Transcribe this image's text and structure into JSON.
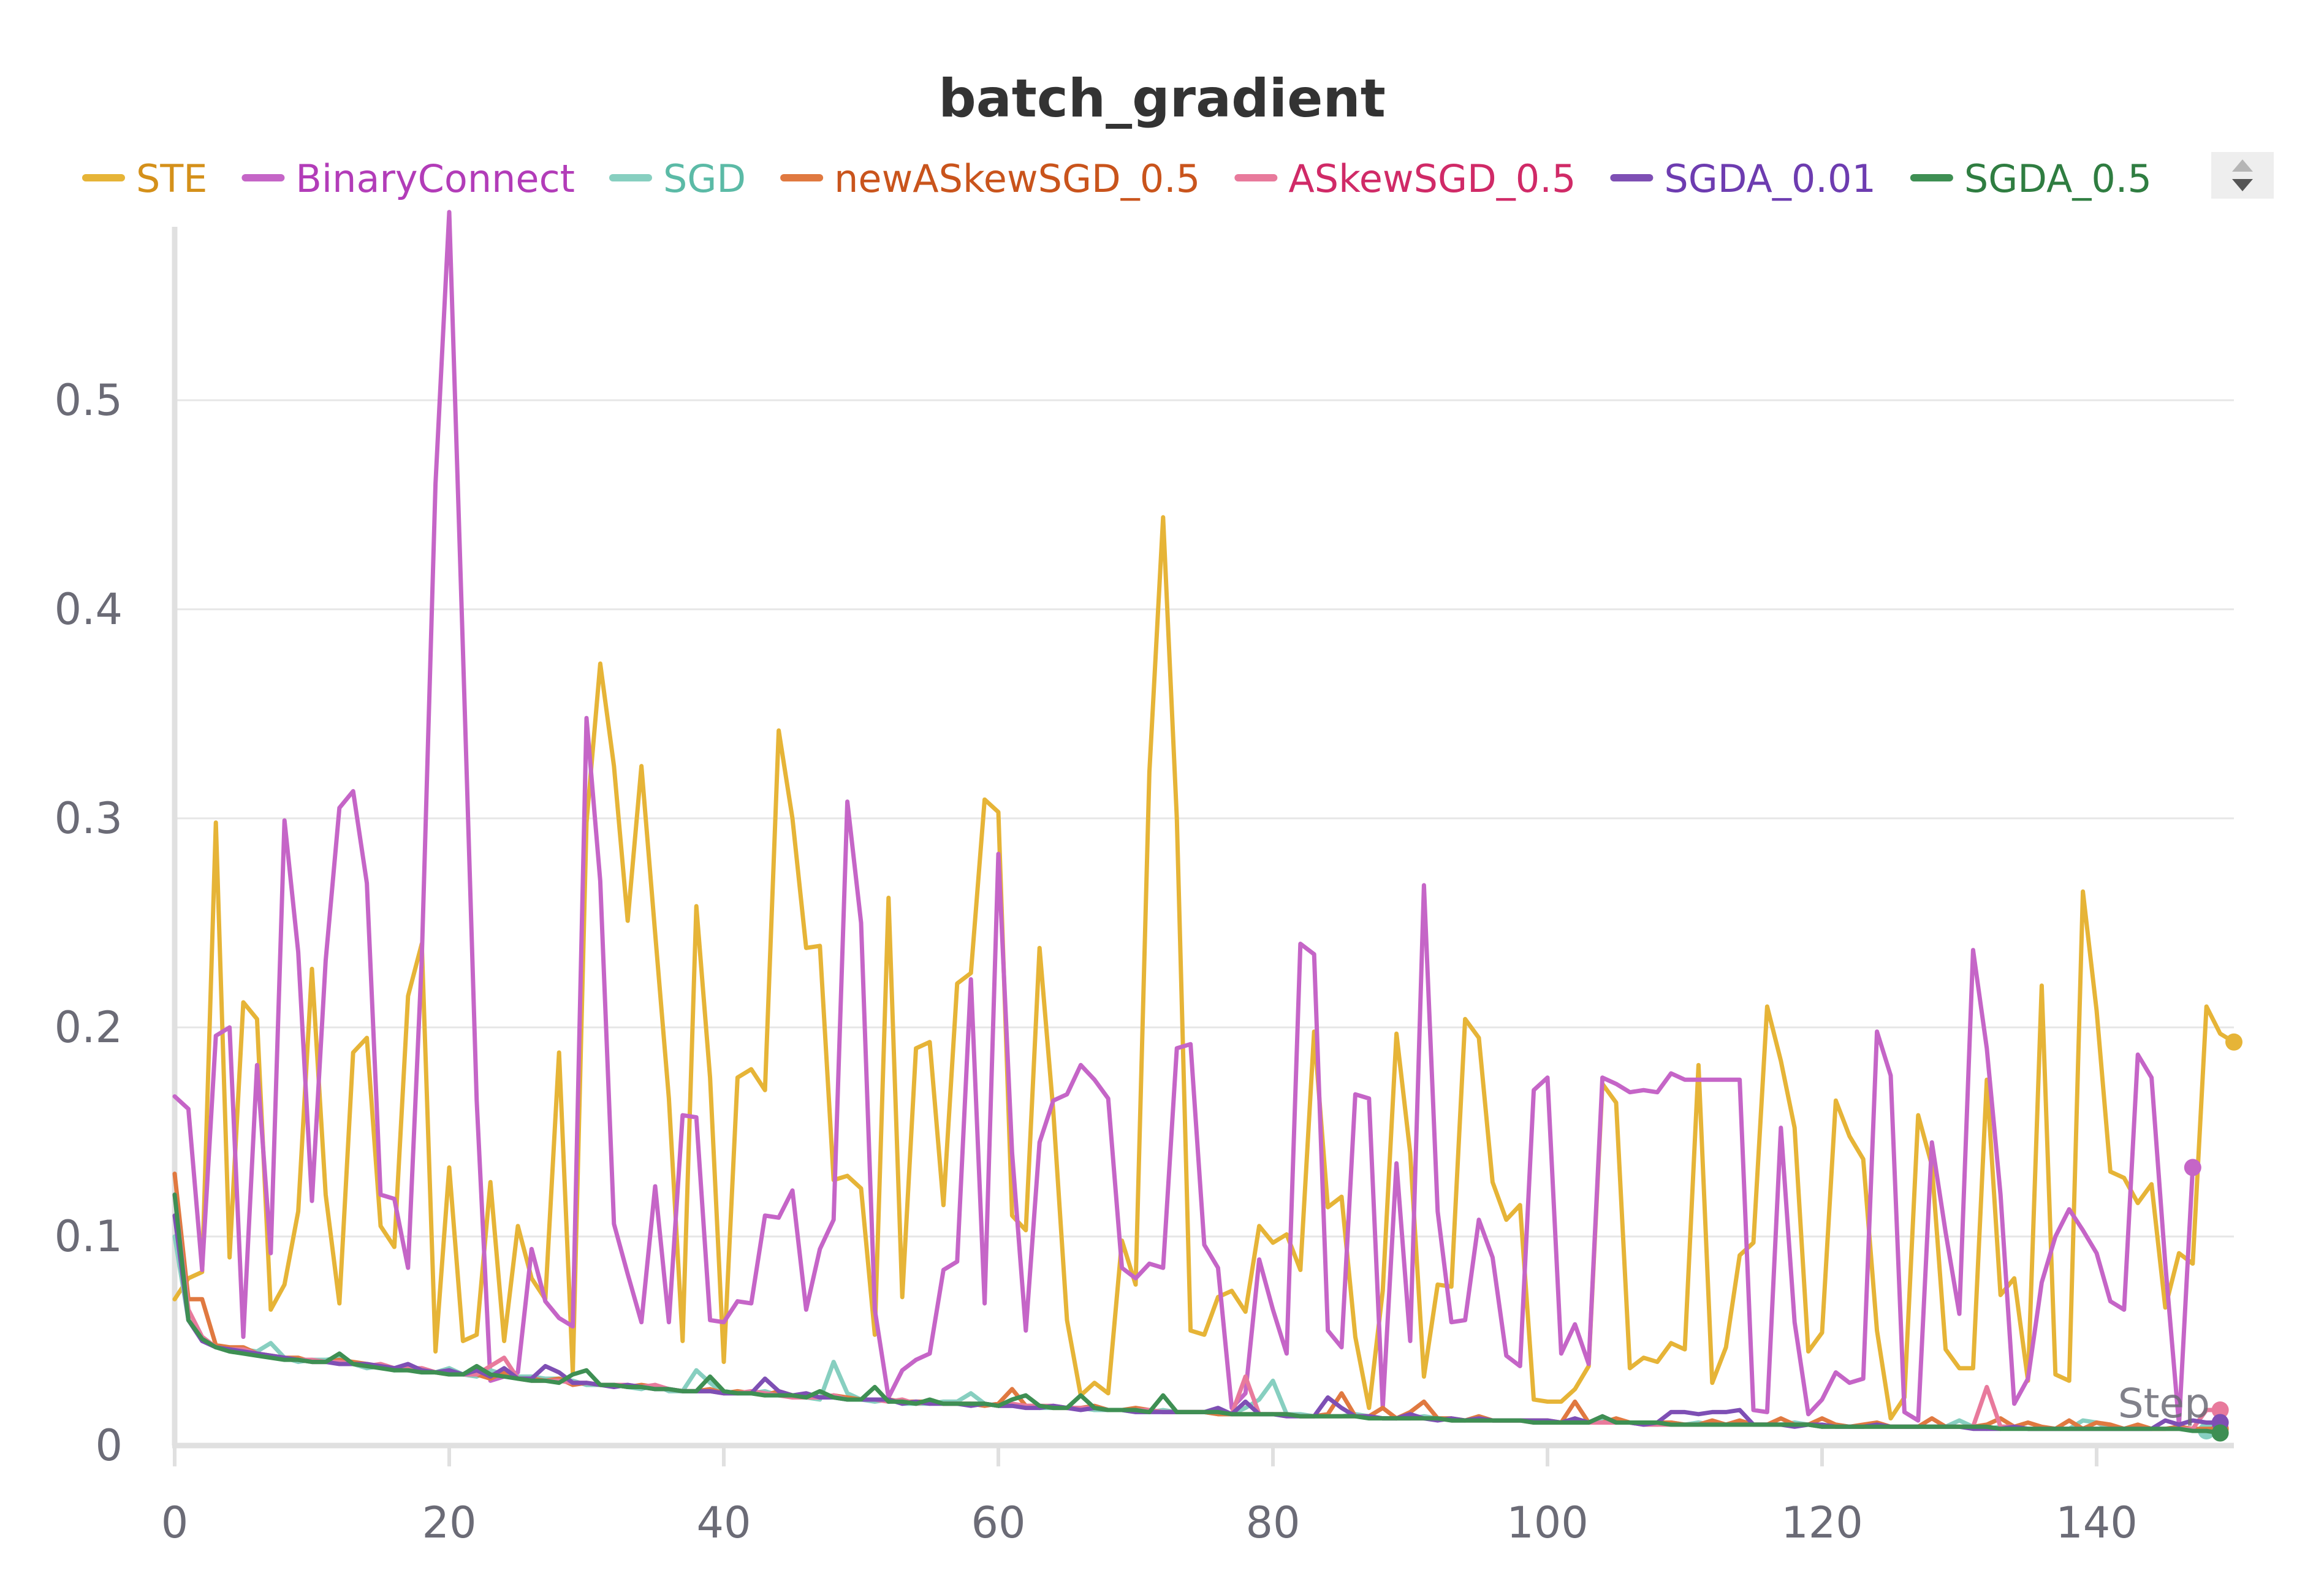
{
  "chart_data": {
    "type": "line",
    "title": "batch_gradient",
    "xlabel": "Step",
    "ylabel": "",
    "xlim": [
      0,
      150
    ],
    "ylim": [
      0,
      0.58
    ],
    "xticks": [
      0,
      20,
      40,
      60,
      80,
      100,
      120,
      140
    ],
    "yticks": [
      0,
      0.1,
      0.2,
      0.3,
      0.4,
      0.5
    ],
    "grid": true,
    "legend_position": "top",
    "x_step": 1,
    "series": [
      {
        "name": "STE",
        "color": "#e6b437",
        "legend_text_color": "#d4901a",
        "values": [
          0.07,
          0.08,
          0.083,
          0.298,
          0.09,
          0.212,
          0.204,
          0.065,
          0.077,
          0.112,
          0.228,
          0.12,
          0.068,
          0.188,
          0.195,
          0.105,
          0.095,
          0.215,
          0.24,
          0.045,
          0.133,
          0.05,
          0.053,
          0.126,
          0.05,
          0.105,
          0.08,
          0.07,
          0.188,
          0.035,
          0.298,
          0.374,
          0.325,
          0.251,
          0.325,
          0.245,
          0.166,
          0.05,
          0.258,
          0.176,
          0.04,
          0.176,
          0.18,
          0.17,
          0.342,
          0.3,
          0.238,
          0.239,
          0.127,
          0.129,
          0.123,
          0.053,
          0.262,
          0.071,
          0.19,
          0.193,
          0.115,
          0.221,
          0.226,
          0.309,
          0.303,
          0.11,
          0.103,
          0.238,
          0.16,
          0.06,
          0.024,
          0.03,
          0.025,
          0.098,
          0.077,
          0.322,
          0.444,
          0.3,
          0.055,
          0.053,
          0.071,
          0.074,
          0.064,
          0.105,
          0.097,
          0.101,
          0.084,
          0.198,
          0.114,
          0.119,
          0.052,
          0.018,
          0.074,
          0.197,
          0.14,
          0.033,
          0.077,
          0.076,
          0.204,
          0.195,
          0.126,
          0.108,
          0.115,
          0.022,
          0.021,
          0.021,
          0.027,
          0.038,
          0.173,
          0.164,
          0.037,
          0.042,
          0.04,
          0.049,
          0.046,
          0.182,
          0.03,
          0.047,
          0.091,
          0.097,
          0.21,
          0.184,
          0.152,
          0.045,
          0.054,
          0.165,
          0.148,
          0.137,
          0.055,
          0.013,
          0.023,
          0.158,
          0.134,
          0.046,
          0.037,
          0.037,
          0.175,
          0.072,
          0.08,
          0.031,
          0.22,
          0.034,
          0.031,
          0.265,
          0.208,
          0.131,
          0.128,
          0.116,
          0.125,
          0.066,
          0.092,
          0.087,
          0.21,
          0.197,
          0.193
        ]
      },
      {
        "name": "BinaryConnect",
        "color": "#c565c7",
        "legend_text_color": "#b23cb8",
        "values": [
          0.167,
          0.161,
          0.084,
          0.196,
          0.2,
          0.052,
          0.182,
          0.092,
          0.299,
          0.236,
          0.117,
          0.232,
          0.305,
          0.313,
          0.269,
          0.12,
          0.118,
          0.085,
          0.233,
          0.46,
          0.59,
          0.38,
          0.165,
          0.031,
          0.033,
          0.035,
          0.094,
          0.069,
          0.061,
          0.057,
          0.348,
          0.27,
          0.106,
          0.082,
          0.059,
          0.124,
          0.059,
          0.158,
          0.157,
          0.06,
          0.059,
          0.069,
          0.068,
          0.11,
          0.109,
          0.122,
          0.065,
          0.094,
          0.108,
          0.308,
          0.25,
          0.065,
          0.023,
          0.036,
          0.041,
          0.044,
          0.084,
          0.088,
          0.223,
          0.068,
          0.283,
          0.14,
          0.055,
          0.145,
          0.165,
          0.168,
          0.182,
          0.175,
          0.166,
          0.085,
          0.08,
          0.087,
          0.085,
          0.19,
          0.192,
          0.096,
          0.085,
          0.018,
          0.025,
          0.089,
          0.065,
          0.044,
          0.24,
          0.235,
          0.055,
          0.047,
          0.168,
          0.166,
          0.018,
          0.135,
          0.05,
          0.268,
          0.112,
          0.059,
          0.06,
          0.108,
          0.09,
          0.043,
          0.038,
          0.17,
          0.176,
          0.044,
          0.058,
          0.039,
          0.176,
          0.173,
          0.169,
          0.17,
          0.169,
          0.178,
          0.175,
          0.175,
          0.175,
          0.175,
          0.175,
          0.017,
          0.016,
          0.152,
          0.059,
          0.015,
          0.022,
          0.035,
          0.03,
          0.032,
          0.198,
          0.177,
          0.016,
          0.012,
          0.145,
          0.102,
          0.063,
          0.237,
          0.19,
          0.12,
          0.02,
          0.032,
          0.078,
          0.1,
          0.113,
          0.103,
          0.092,
          0.069,
          0.065,
          0.187,
          0.176,
          0.087,
          0.01,
          0.133
        ]
      },
      {
        "name": "SGD",
        "color": "#87cfc0",
        "legend_text_color": "#5bbaa6",
        "values": [
          0.1,
          0.06,
          0.052,
          0.047,
          0.046,
          0.046,
          0.045,
          0.049,
          0.042,
          0.04,
          0.041,
          0.041,
          0.042,
          0.039,
          0.037,
          0.038,
          0.036,
          0.037,
          0.036,
          0.035,
          0.037,
          0.034,
          0.033,
          0.036,
          0.034,
          0.033,
          0.033,
          0.032,
          0.032,
          0.031,
          0.029,
          0.029,
          0.029,
          0.028,
          0.027,
          0.029,
          0.026,
          0.026,
          0.036,
          0.03,
          0.025,
          0.025,
          0.025,
          0.026,
          0.024,
          0.024,
          0.023,
          0.022,
          0.04,
          0.025,
          0.022,
          0.021,
          0.022,
          0.02,
          0.02,
          0.02,
          0.021,
          0.021,
          0.025,
          0.02,
          0.019,
          0.019,
          0.019,
          0.018,
          0.018,
          0.018,
          0.018,
          0.017,
          0.017,
          0.017,
          0.016,
          0.016,
          0.017,
          0.016,
          0.016,
          0.016,
          0.015,
          0.015,
          0.018,
          0.022,
          0.031,
          0.015,
          0.015,
          0.014,
          0.014,
          0.014,
          0.015,
          0.014,
          0.013,
          0.013,
          0.013,
          0.014,
          0.013,
          0.012,
          0.012,
          0.013,
          0.012,
          0.012,
          0.012,
          0.012,
          0.011,
          0.011,
          0.011,
          0.011,
          0.012,
          0.011,
          0.011,
          0.01,
          0.01,
          0.011,
          0.01,
          0.011,
          0.01,
          0.01,
          0.01,
          0.01,
          0.01,
          0.01,
          0.011,
          0.01,
          0.009,
          0.01,
          0.009,
          0.009,
          0.009,
          0.009,
          0.009,
          0.009,
          0.009,
          0.009,
          0.012,
          0.009,
          0.008,
          0.009,
          0.009,
          0.008,
          0.008,
          0.008,
          0.008,
          0.012,
          0.011,
          0.008,
          0.008,
          0.008,
          0.008,
          0.008,
          0.008,
          0.008,
          0.007
        ]
      },
      {
        "name": "newASkewSGD_0.5",
        "color": "#e07940",
        "legend_text_color": "#c9541c",
        "values": [
          0.13,
          0.07,
          0.07,
          0.048,
          0.047,
          0.047,
          0.044,
          0.043,
          0.042,
          0.042,
          0.04,
          0.04,
          0.041,
          0.04,
          0.039,
          0.038,
          0.037,
          0.036,
          0.037,
          0.035,
          0.034,
          0.034,
          0.034,
          0.032,
          0.035,
          0.032,
          0.032,
          0.031,
          0.032,
          0.029,
          0.03,
          0.029,
          0.029,
          0.028,
          0.029,
          0.028,
          0.027,
          0.026,
          0.026,
          0.027,
          0.025,
          0.026,
          0.025,
          0.024,
          0.026,
          0.024,
          0.023,
          0.023,
          0.024,
          0.023,
          0.022,
          0.022,
          0.022,
          0.021,
          0.021,
          0.021,
          0.02,
          0.02,
          0.02,
          0.019,
          0.02,
          0.027,
          0.019,
          0.019,
          0.018,
          0.018,
          0.018,
          0.019,
          0.017,
          0.017,
          0.018,
          0.017,
          0.016,
          0.016,
          0.016,
          0.016,
          0.015,
          0.015,
          0.015,
          0.015,
          0.015,
          0.015,
          0.014,
          0.014,
          0.015,
          0.025,
          0.014,
          0.014,
          0.018,
          0.013,
          0.016,
          0.021,
          0.013,
          0.013,
          0.012,
          0.014,
          0.012,
          0.012,
          0.012,
          0.012,
          0.012,
          0.011,
          0.021,
          0.011,
          0.011,
          0.013,
          0.011,
          0.011,
          0.011,
          0.011,
          0.01,
          0.01,
          0.012,
          0.01,
          0.012,
          0.01,
          0.01,
          0.013,
          0.01,
          0.01,
          0.013,
          0.01,
          0.009,
          0.01,
          0.011,
          0.009,
          0.009,
          0.009,
          0.013,
          0.009,
          0.009,
          0.009,
          0.01,
          0.013,
          0.009,
          0.011,
          0.009,
          0.008,
          0.012,
          0.008,
          0.011,
          0.01,
          0.008,
          0.01,
          0.008,
          0.008,
          0.009,
          0.008,
          0.008,
          0.008
        ]
      },
      {
        "name": "ASkewSGD_0.5",
        "color": "#e87a9c",
        "legend_text_color": "#d02a67",
        "values": [
          0.12,
          0.065,
          0.052,
          0.047,
          0.046,
          0.046,
          0.044,
          0.043,
          0.042,
          0.041,
          0.041,
          0.04,
          0.04,
          0.039,
          0.038,
          0.039,
          0.037,
          0.037,
          0.037,
          0.035,
          0.035,
          0.034,
          0.034,
          0.038,
          0.042,
          0.032,
          0.031,
          0.031,
          0.031,
          0.03,
          0.03,
          0.029,
          0.029,
          0.029,
          0.028,
          0.029,
          0.027,
          0.026,
          0.026,
          0.026,
          0.025,
          0.025,
          0.026,
          0.025,
          0.024,
          0.023,
          0.023,
          0.023,
          0.024,
          0.022,
          0.022,
          0.022,
          0.021,
          0.022,
          0.02,
          0.021,
          0.02,
          0.02,
          0.02,
          0.02,
          0.019,
          0.02,
          0.019,
          0.019,
          0.019,
          0.018,
          0.018,
          0.018,
          0.017,
          0.017,
          0.017,
          0.017,
          0.016,
          0.016,
          0.016,
          0.016,
          0.016,
          0.015,
          0.033,
          0.015,
          0.015,
          0.015,
          0.014,
          0.014,
          0.014,
          0.014,
          0.014,
          0.014,
          0.013,
          0.013,
          0.013,
          0.013,
          0.013,
          0.012,
          0.012,
          0.012,
          0.012,
          0.012,
          0.012,
          0.011,
          0.011,
          0.011,
          0.011,
          0.011,
          0.011,
          0.011,
          0.011,
          0.01,
          0.01,
          0.01,
          0.01,
          0.01,
          0.01,
          0.01,
          0.01,
          0.01,
          0.01,
          0.01,
          0.01,
          0.01,
          0.009,
          0.009,
          0.009,
          0.009,
          0.009,
          0.009,
          0.009,
          0.009,
          0.009,
          0.009,
          0.009,
          0.009,
          0.028,
          0.009,
          0.009,
          0.008,
          0.008,
          0.008,
          0.008,
          0.008,
          0.008,
          0.008,
          0.008,
          0.008,
          0.008,
          0.008,
          0.008,
          0.008,
          0.017,
          0.017
        ]
      },
      {
        "name": "SGDA_0.01",
        "color": "#7e4fb4",
        "legend_text_color": "#6d3cb0",
        "values": [
          0.11,
          0.06,
          0.05,
          0.047,
          0.046,
          0.045,
          0.044,
          0.043,
          0.042,
          0.041,
          0.04,
          0.04,
          0.039,
          0.039,
          0.039,
          0.038,
          0.037,
          0.039,
          0.036,
          0.035,
          0.036,
          0.034,
          0.036,
          0.033,
          0.037,
          0.032,
          0.032,
          0.038,
          0.035,
          0.03,
          0.03,
          0.029,
          0.028,
          0.029,
          0.028,
          0.027,
          0.027,
          0.026,
          0.026,
          0.026,
          0.025,
          0.025,
          0.025,
          0.032,
          0.026,
          0.024,
          0.025,
          0.023,
          0.023,
          0.022,
          0.022,
          0.022,
          0.022,
          0.02,
          0.021,
          0.02,
          0.02,
          0.02,
          0.019,
          0.02,
          0.019,
          0.019,
          0.018,
          0.018,
          0.019,
          0.018,
          0.017,
          0.018,
          0.017,
          0.017,
          0.016,
          0.016,
          0.016,
          0.016,
          0.016,
          0.016,
          0.018,
          0.015,
          0.021,
          0.015,
          0.015,
          0.014,
          0.014,
          0.014,
          0.023,
          0.018,
          0.014,
          0.014,
          0.013,
          0.013,
          0.015,
          0.013,
          0.012,
          0.013,
          0.012,
          0.013,
          0.012,
          0.012,
          0.012,
          0.012,
          0.012,
          0.011,
          0.013,
          0.011,
          0.014,
          0.011,
          0.011,
          0.01,
          0.011,
          0.016,
          0.016,
          0.015,
          0.016,
          0.016,
          0.017,
          0.01,
          0.01,
          0.01,
          0.009,
          0.01,
          0.01,
          0.009,
          0.009,
          0.009,
          0.01,
          0.009,
          0.009,
          0.009,
          0.009,
          0.009,
          0.009,
          0.008,
          0.008,
          0.008,
          0.009,
          0.008,
          0.008,
          0.008,
          0.008,
          0.008,
          0.008,
          0.008,
          0.008,
          0.008,
          0.008,
          0.012,
          0.01,
          0.012,
          0.011,
          0.011
        ]
      },
      {
        "name": "SGDA_0.5",
        "color": "#3e8f53",
        "legend_text_color": "#2f7d41",
        "values": [
          0.12,
          0.06,
          0.051,
          0.047,
          0.045,
          0.044,
          0.043,
          0.042,
          0.041,
          0.041,
          0.04,
          0.04,
          0.044,
          0.039,
          0.038,
          0.037,
          0.036,
          0.036,
          0.035,
          0.035,
          0.034,
          0.034,
          0.038,
          0.034,
          0.033,
          0.032,
          0.031,
          0.031,
          0.03,
          0.034,
          0.036,
          0.029,
          0.029,
          0.028,
          0.028,
          0.027,
          0.027,
          0.026,
          0.026,
          0.033,
          0.026,
          0.025,
          0.025,
          0.024,
          0.024,
          0.024,
          0.023,
          0.026,
          0.023,
          0.022,
          0.022,
          0.028,
          0.021,
          0.021,
          0.02,
          0.022,
          0.02,
          0.02,
          0.02,
          0.02,
          0.019,
          0.022,
          0.024,
          0.019,
          0.018,
          0.018,
          0.024,
          0.018,
          0.017,
          0.017,
          0.017,
          0.016,
          0.024,
          0.016,
          0.016,
          0.016,
          0.016,
          0.015,
          0.015,
          0.015,
          0.015,
          0.015,
          0.014,
          0.014,
          0.014,
          0.014,
          0.014,
          0.013,
          0.013,
          0.013,
          0.013,
          0.013,
          0.013,
          0.012,
          0.012,
          0.012,
          0.012,
          0.012,
          0.012,
          0.011,
          0.011,
          0.011,
          0.011,
          0.011,
          0.014,
          0.011,
          0.011,
          0.011,
          0.011,
          0.01,
          0.01,
          0.01,
          0.01,
          0.01,
          0.01,
          0.01,
          0.01,
          0.01,
          0.01,
          0.01,
          0.009,
          0.009,
          0.009,
          0.009,
          0.009,
          0.009,
          0.009,
          0.009,
          0.009,
          0.009,
          0.009,
          0.009,
          0.009,
          0.008,
          0.008,
          0.008,
          0.008,
          0.008,
          0.008,
          0.008,
          0.008,
          0.008,
          0.008,
          0.008,
          0.008,
          0.008,
          0.008,
          0.007,
          0.007,
          0.006
        ]
      }
    ]
  }
}
